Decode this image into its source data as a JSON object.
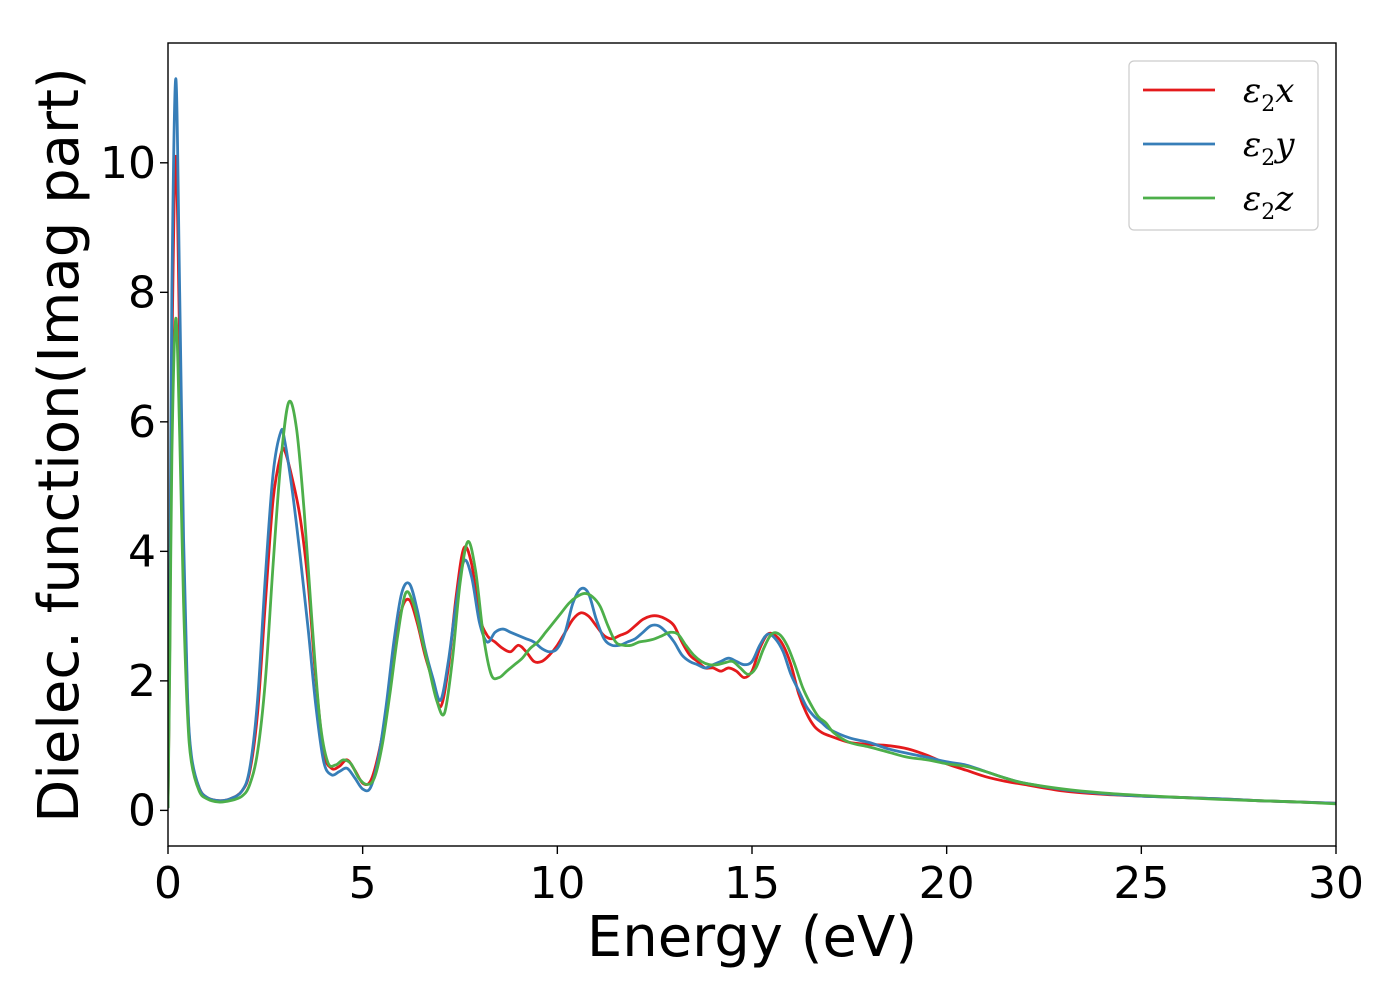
{
  "chart_data": {
    "type": "line",
    "title": "",
    "xlabel": "Energy (eV)",
    "ylabel": "Dielec. function(Imag part)",
    "xlim": [
      0,
      30
    ],
    "ylim": [
      -0.55,
      11.85
    ],
    "xticks": [
      0,
      5,
      10,
      15,
      20,
      25,
      30
    ],
    "xtick_labels": [
      "0",
      "5",
      "10",
      "15",
      "20",
      "25",
      "30"
    ],
    "yticks": [
      0,
      2,
      4,
      6,
      8,
      10
    ],
    "ytick_labels": [
      "0",
      "2",
      "4",
      "6",
      "8",
      "10"
    ],
    "grid": false,
    "legend_position": "top-right",
    "series": [
      {
        "name": "ε₂x",
        "legend_main": "ε",
        "legend_sub": "2",
        "legend_suffix": "x",
        "color": "#e41a1c",
        "x": [
          0,
          0.05,
          0.1,
          0.2,
          0.3,
          0.4,
          0.5,
          0.6,
          0.8,
          1.0,
          1.3,
          1.6,
          1.9,
          2.1,
          2.3,
          2.5,
          2.7,
          2.9,
          3.0,
          3.2,
          3.4,
          3.6,
          3.8,
          4.0,
          4.2,
          4.4,
          4.6,
          4.8,
          5.0,
          5.2,
          5.4,
          5.6,
          5.8,
          6.0,
          6.2,
          6.4,
          6.6,
          6.8,
          7.0,
          7.2,
          7.4,
          7.6,
          7.8,
          8.0,
          8.2,
          8.4,
          8.6,
          8.8,
          9.0,
          9.2,
          9.4,
          9.6,
          9.8,
          10.0,
          10.2,
          10.4,
          10.6,
          10.8,
          11.0,
          11.2,
          11.4,
          11.6,
          11.8,
          12.0,
          12.2,
          12.4,
          12.6,
          12.8,
          13.0,
          13.2,
          13.4,
          13.6,
          13.8,
          14.0,
          14.2,
          14.4,
          14.6,
          14.8,
          15.0,
          15.2,
          15.4,
          15.6,
          15.8,
          16.0,
          16.2,
          16.4,
          16.6,
          16.8,
          17.0,
          17.5,
          18.0,
          18.5,
          19.0,
          19.5,
          20.0,
          20.5,
          21.0,
          21.5,
          22.0,
          23.0,
          24.0,
          25.0,
          26.0,
          27.0,
          28.0,
          29.0,
          30.0
        ],
        "values": [
          0.05,
          3.0,
          7.0,
          10.1,
          7.2,
          3.8,
          1.7,
          0.8,
          0.35,
          0.2,
          0.15,
          0.18,
          0.3,
          0.6,
          1.5,
          3.2,
          4.8,
          5.5,
          5.55,
          5.1,
          4.5,
          3.5,
          2.0,
          0.9,
          0.65,
          0.68,
          0.78,
          0.62,
          0.42,
          0.45,
          0.85,
          1.5,
          2.4,
          3.1,
          3.25,
          2.9,
          2.4,
          2.0,
          1.6,
          2.2,
          3.3,
          4.05,
          3.8,
          3.0,
          2.7,
          2.6,
          2.5,
          2.45,
          2.55,
          2.45,
          2.3,
          2.3,
          2.4,
          2.55,
          2.75,
          2.95,
          3.05,
          3.0,
          2.85,
          2.7,
          2.65,
          2.7,
          2.75,
          2.85,
          2.95,
          3.0,
          3.0,
          2.95,
          2.85,
          2.6,
          2.4,
          2.3,
          2.2,
          2.2,
          2.15,
          2.2,
          2.15,
          2.05,
          2.15,
          2.5,
          2.72,
          2.7,
          2.55,
          2.25,
          1.8,
          1.5,
          1.3,
          1.2,
          1.15,
          1.05,
          1.02,
          1.0,
          0.95,
          0.85,
          0.72,
          0.62,
          0.52,
          0.45,
          0.4,
          0.3,
          0.25,
          0.22,
          0.2,
          0.18,
          0.15,
          0.13,
          0.11
        ]
      },
      {
        "name": "ε₂y",
        "legend_main": "ε",
        "legend_sub": "2",
        "legend_suffix": "y",
        "color": "#377eb8",
        "x": [
          0,
          0.05,
          0.1,
          0.2,
          0.3,
          0.4,
          0.5,
          0.6,
          0.8,
          1.0,
          1.3,
          1.6,
          1.9,
          2.1,
          2.3,
          2.5,
          2.7,
          2.9,
          3.0,
          3.2,
          3.4,
          3.6,
          3.8,
          4.0,
          4.2,
          4.4,
          4.6,
          4.8,
          5.0,
          5.2,
          5.4,
          5.6,
          5.8,
          6.0,
          6.2,
          6.4,
          6.6,
          6.8,
          7.0,
          7.2,
          7.4,
          7.6,
          7.8,
          8.0,
          8.2,
          8.4,
          8.6,
          8.8,
          9.0,
          9.2,
          9.4,
          9.6,
          9.8,
          10.0,
          10.2,
          10.4,
          10.6,
          10.8,
          11.0,
          11.2,
          11.4,
          11.6,
          11.8,
          12.0,
          12.2,
          12.4,
          12.6,
          12.8,
          13.0,
          13.2,
          13.4,
          13.6,
          13.8,
          14.0,
          14.2,
          14.4,
          14.6,
          14.8,
          15.0,
          15.2,
          15.4,
          15.6,
          15.8,
          16.0,
          16.2,
          16.4,
          16.6,
          16.8,
          17.0,
          17.5,
          18.0,
          18.5,
          19.0,
          19.5,
          20.0,
          20.5,
          21.0,
          21.5,
          22.0,
          23.0,
          24.0,
          25.0,
          26.0,
          27.0,
          28.0,
          29.0,
          30.0
        ],
        "values": [
          0.05,
          3.5,
          8.0,
          11.3,
          8.0,
          4.2,
          1.8,
          0.85,
          0.35,
          0.2,
          0.15,
          0.18,
          0.3,
          0.65,
          1.7,
          3.6,
          5.2,
          5.85,
          5.7,
          4.9,
          3.9,
          2.8,
          1.6,
          0.75,
          0.55,
          0.6,
          0.65,
          0.5,
          0.33,
          0.35,
          0.8,
          1.6,
          2.6,
          3.35,
          3.5,
          3.1,
          2.5,
          2.05,
          1.7,
          2.3,
          3.2,
          3.85,
          3.6,
          2.9,
          2.6,
          2.75,
          2.8,
          2.75,
          2.7,
          2.65,
          2.6,
          2.5,
          2.45,
          2.5,
          2.75,
          3.2,
          3.42,
          3.35,
          2.95,
          2.65,
          2.55,
          2.55,
          2.6,
          2.65,
          2.75,
          2.85,
          2.85,
          2.75,
          2.6,
          2.4,
          2.3,
          2.25,
          2.2,
          2.25,
          2.3,
          2.35,
          2.3,
          2.25,
          2.3,
          2.55,
          2.72,
          2.65,
          2.45,
          2.1,
          1.85,
          1.6,
          1.45,
          1.35,
          1.25,
          1.12,
          1.05,
          0.95,
          0.88,
          0.82,
          0.75,
          0.7,
          0.6,
          0.5,
          0.42,
          0.32,
          0.26,
          0.22,
          0.2,
          0.18,
          0.15,
          0.13,
          0.11
        ]
      },
      {
        "name": "ε₂z",
        "legend_main": "ε",
        "legend_sub": "2",
        "legend_suffix": "z",
        "color": "#4daf4a",
        "x": [
          0,
          0.05,
          0.1,
          0.2,
          0.3,
          0.4,
          0.5,
          0.6,
          0.8,
          1.0,
          1.3,
          1.6,
          1.9,
          2.1,
          2.3,
          2.5,
          2.7,
          2.9,
          3.1,
          3.3,
          3.5,
          3.7,
          3.9,
          4.1,
          4.3,
          4.5,
          4.7,
          4.9,
          5.1,
          5.3,
          5.5,
          5.7,
          5.9,
          6.1,
          6.3,
          6.5,
          6.7,
          6.9,
          7.1,
          7.3,
          7.5,
          7.7,
          7.9,
          8.1,
          8.3,
          8.5,
          8.7,
          8.9,
          9.1,
          9.3,
          9.5,
          9.7,
          9.9,
          10.1,
          10.3,
          10.5,
          10.7,
          10.9,
          11.1,
          11.3,
          11.5,
          11.7,
          11.9,
          12.1,
          12.3,
          12.5,
          12.7,
          12.9,
          13.1,
          13.3,
          13.5,
          13.7,
          13.9,
          14.1,
          14.3,
          14.5,
          14.7,
          14.9,
          15.1,
          15.3,
          15.5,
          15.7,
          15.9,
          16.1,
          16.3,
          16.5,
          16.7,
          16.9,
          17.1,
          17.5,
          18.0,
          18.5,
          19.0,
          19.5,
          20.0,
          20.5,
          21.0,
          21.5,
          22.0,
          23.0,
          24.0,
          25.0,
          26.0,
          27.0,
          28.0,
          29.0,
          30.0
        ],
        "values": [
          0.05,
          2.5,
          5.5,
          7.6,
          5.8,
          3.2,
          1.5,
          0.75,
          0.3,
          0.18,
          0.13,
          0.15,
          0.22,
          0.4,
          0.9,
          2.0,
          3.8,
          5.4,
          6.3,
          5.9,
          4.6,
          2.9,
          1.4,
          0.75,
          0.7,
          0.78,
          0.72,
          0.5,
          0.4,
          0.5,
          1.0,
          1.8,
          2.7,
          3.35,
          3.2,
          2.7,
          2.2,
          1.7,
          1.5,
          2.3,
          3.5,
          4.15,
          3.7,
          2.7,
          2.1,
          2.05,
          2.15,
          2.25,
          2.35,
          2.5,
          2.6,
          2.75,
          2.9,
          3.05,
          3.2,
          3.3,
          3.35,
          3.3,
          3.15,
          2.85,
          2.6,
          2.55,
          2.55,
          2.6,
          2.62,
          2.65,
          2.7,
          2.75,
          2.72,
          2.55,
          2.4,
          2.3,
          2.25,
          2.25,
          2.28,
          2.3,
          2.2,
          2.1,
          2.2,
          2.5,
          2.72,
          2.72,
          2.55,
          2.25,
          1.9,
          1.65,
          1.45,
          1.35,
          1.2,
          1.05,
          0.98,
          0.9,
          0.82,
          0.78,
          0.72,
          0.68,
          0.6,
          0.5,
          0.42,
          0.33,
          0.27,
          0.23,
          0.2,
          0.17,
          0.15,
          0.13,
          0.1
        ]
      }
    ]
  }
}
